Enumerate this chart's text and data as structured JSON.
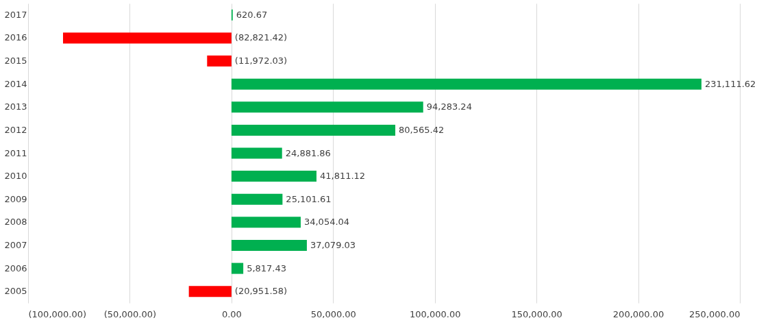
{
  "chart_data": {
    "type": "bar",
    "orientation": "horizontal",
    "categories": [
      "2017",
      "2016",
      "2015",
      "2014",
      "2013",
      "2012",
      "2011",
      "2010",
      "2009",
      "2008",
      "2007",
      "2006",
      "2005"
    ],
    "values": [
      620.67,
      -82821.42,
      -11972.03,
      231111.62,
      94283.24,
      80565.42,
      24881.86,
      41811.12,
      25101.61,
      34054.04,
      37079.03,
      5817.43,
      -20951.58
    ],
    "colors": [
      "#00b050",
      "#ff0000",
      "#ff0000",
      "#00b050",
      "#00b050",
      "#00b050",
      "#00b050",
      "#00b050",
      "#00b050",
      "#00b050",
      "#00b050",
      "#00b050",
      "#ff0000"
    ],
    "value_labels": [
      "620.67",
      "(82,821.42)",
      "(11,972.03)",
      "231,111.62",
      "94,283.24",
      "80,565.42",
      "24,881.86",
      "41,811.12",
      "25,101.61",
      "34,054.04",
      "37,079.03",
      "5,817.43",
      "(20,951.58)"
    ],
    "xlim": [
      -100000,
      250000
    ],
    "xticks": [
      {
        "value": -100000,
        "label": "(100,000.00)"
      },
      {
        "value": -50000,
        "label": "(50,000.00)"
      },
      {
        "value": 0,
        "label": "0.00"
      },
      {
        "value": 50000,
        "label": "50,000.00"
      },
      {
        "value": 100000,
        "label": "100,000.00"
      },
      {
        "value": 150000,
        "label": "150,000.00"
      },
      {
        "value": 200000,
        "label": "200,000.00"
      },
      {
        "value": 250000,
        "label": "250,000.00"
      }
    ],
    "grid": "x"
  }
}
